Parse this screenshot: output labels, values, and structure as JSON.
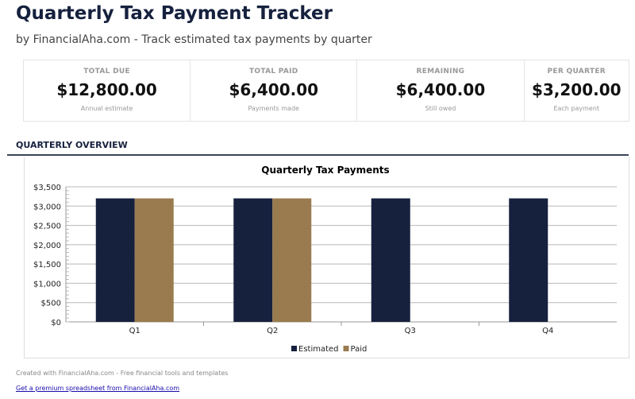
{
  "header": {
    "title": "Quarterly Tax Payment Tracker",
    "subtitle": "by FinancialAha.com - Track estimated tax payments by quarter"
  },
  "cards": [
    {
      "label": "TOTAL DUE",
      "value": "$12,800.00",
      "note": "Annual estimate"
    },
    {
      "label": "TOTAL PAID",
      "value": "$6,400.00",
      "note": "Payments made"
    },
    {
      "label": "REMAINING",
      "value": "$6,400.00",
      "note": "Still owed"
    },
    {
      "label": "PER QUARTER",
      "value": "$3,200.00",
      "note": "Each payment"
    }
  ],
  "section_title": "QUARTERLY OVERVIEW",
  "chart_data": {
    "type": "bar",
    "title": "Quarterly Tax Payments",
    "categories": [
      "Q1",
      "Q2",
      "Q3",
      "Q4"
    ],
    "series": [
      {
        "name": "Estimated",
        "values": [
          3200,
          3200,
          3200,
          3200
        ],
        "color": "#16213e"
      },
      {
        "name": "Paid",
        "values": [
          3200,
          3200,
          0,
          0
        ],
        "color": "#9a7b4f"
      }
    ],
    "ylim": [
      0,
      3500
    ],
    "yticks": [
      0,
      500,
      1000,
      1500,
      2000,
      2500,
      3000,
      3500
    ],
    "ytick_labels": [
      "$0",
      "$500",
      "$1,000",
      "$1,500",
      "$2,000",
      "$2,500",
      "$3,000",
      "$3,500"
    ],
    "grid": true,
    "legend": "bottom"
  },
  "footer": {
    "credit": "Created with FinancialAha.com - Free financial tools and templates",
    "link": "Get a premium spreadsheet from FinancialAha.com"
  }
}
